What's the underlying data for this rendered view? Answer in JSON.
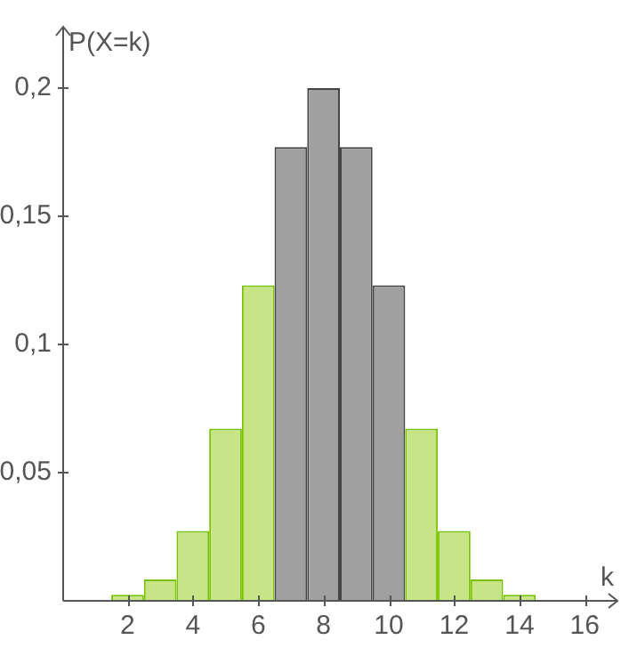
{
  "chart_data": {
    "type": "histogram",
    "xlabel": "k",
    "ylabel": "P(X=k)",
    "bins": [
      1.5,
      2.5,
      3.5,
      4.5,
      5.5,
      6.5,
      7.5,
      8.5,
      9.5,
      10.5,
      11.5,
      12.5,
      13.5,
      14.5
    ],
    "values": [
      0.002,
      0.008,
      0.027,
      0.067,
      0.123,
      0.177,
      0.2,
      0.177,
      0.123,
      0.067,
      0.027,
      0.008,
      0.002
    ],
    "colors": [
      "#c7e486",
      "#c7e486",
      "#c7e486",
      "#c7e486",
      "#c7e486",
      "#a0a0a0",
      "#a0a0a0",
      "#a0a0a0",
      "#a0a0a0",
      "#c7e486",
      "#c7e486",
      "#c7e486",
      "#c7e486"
    ],
    "xlim": [
      0,
      17
    ],
    "xticks": [
      2,
      4,
      6,
      8,
      10,
      12,
      14,
      16
    ],
    "ylim": [
      0,
      0.224
    ],
    "yticks": [
      {
        "value": 0.05,
        "label": "0,05"
      },
      {
        "value": 0.1,
        "label": "0,1"
      },
      {
        "value": 0.15,
        "label": "0,15"
      },
      {
        "value": 0.2,
        "label": "0,2"
      }
    ],
    "grid": false,
    "legend": false
  }
}
